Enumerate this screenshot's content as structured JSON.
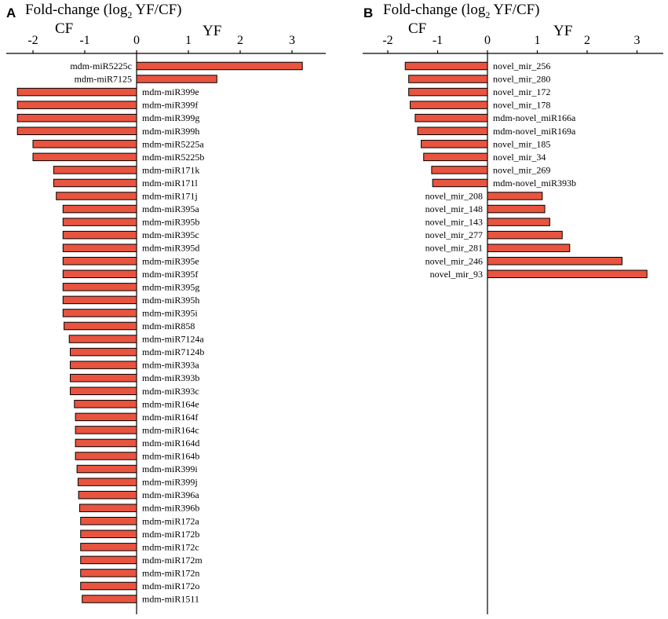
{
  "colors": {
    "bar_fill": "#e8543f",
    "axis": "#000000"
  },
  "chart_data": [
    {
      "type": "bar",
      "orientation": "horizontal",
      "panel": "A",
      "title_main": "Fold-change (log",
      "title_sub": "2",
      "title_rest": " YF/CF)",
      "left_label": "CF",
      "right_label": "YF",
      "xlim": [
        -2.5,
        3.5
      ],
      "xticks": [
        -2,
        -1,
        0,
        1,
        2,
        3
      ],
      "xtick_labels": [
        "-2",
        "-1",
        "0",
        "1",
        "2",
        "3"
      ],
      "categories": [
        "mdm-miR5225c",
        "mdm-miR7125",
        "mdm-miR399e",
        "mdm-miR399f",
        "mdm-miR399g",
        "mdm-miR399h",
        "mdm-miR5225a",
        "mdm-miR5225b",
        "mdm-miR171k",
        "mdm-miR171l",
        "mdm-miR171j",
        "mdm-miR395a",
        "mdm-miR395b",
        "mdm-miR395c",
        "mdm-miR395d",
        "mdm-miR395e",
        "mdm-miR395f",
        "mdm-miR395g",
        "mdm-miR395h",
        "mdm-miR395i",
        "mdm-miR858",
        "mdm-miR7124a",
        "mdm-miR7124b",
        "mdm-miR393a",
        "mdm-miR393b",
        "mdm-miR393c",
        "mdm-miR164e",
        "mdm-miR164f",
        "mdm-miR164c",
        "mdm-miR164d",
        "mdm-miR164b",
        "mdm-miR399i",
        "mdm-miR399j",
        "mdm-miR396a",
        "mdm-miR396b",
        "mdm-miR172a",
        "mdm-miR172b",
        "mdm-miR172c",
        "mdm-miR172m",
        "mdm-miR172n",
        "mdm-miR172o",
        "mdm-miR1511"
      ],
      "values": [
        3.2,
        1.55,
        -2.3,
        -2.3,
        -2.3,
        -2.3,
        -2.0,
        -2.0,
        -1.6,
        -1.6,
        -1.55,
        -1.42,
        -1.42,
        -1.42,
        -1.42,
        -1.42,
        -1.42,
        -1.42,
        -1.42,
        -1.42,
        -1.4,
        -1.3,
        -1.28,
        -1.28,
        -1.28,
        -1.28,
        -1.2,
        -1.18,
        -1.18,
        -1.18,
        -1.18,
        -1.15,
        -1.13,
        -1.12,
        -1.1,
        -1.08,
        -1.08,
        -1.08,
        -1.08,
        -1.08,
        -1.08,
        -1.05
      ]
    },
    {
      "type": "bar",
      "orientation": "horizontal",
      "panel": "B",
      "title_main": "Fold-change (log",
      "title_sub": "2",
      "title_rest": " YF/CF)",
      "left_label": "CF",
      "right_label": "YF",
      "xlim": [
        -2.5,
        3.5
      ],
      "xticks": [
        -2,
        -1,
        0,
        1,
        2,
        3
      ],
      "xtick_labels": [
        "-2",
        "-1",
        "0",
        "1",
        "2",
        "3"
      ],
      "categories": [
        "novel_mir_256",
        "novel_mir_280",
        "novel_mir_172",
        "novel_mir_178",
        "mdm-novel_miR166a",
        "mdm-novel_miR169a",
        "novel_mir_185",
        "novel_mir_34",
        "novel_mir_269",
        "mdm-novel_miR393b",
        "novel_mir_208",
        "novel_mir_148",
        "novel_mir_143",
        "novel_mir_277",
        "novel_mir_281",
        "novel_mir_246",
        "novel_mir_93"
      ],
      "values": [
        -1.65,
        -1.58,
        -1.58,
        -1.55,
        -1.45,
        -1.4,
        -1.33,
        -1.28,
        -1.12,
        -1.1,
        1.1,
        1.15,
        1.25,
        1.5,
        1.65,
        2.7,
        3.2
      ]
    }
  ]
}
